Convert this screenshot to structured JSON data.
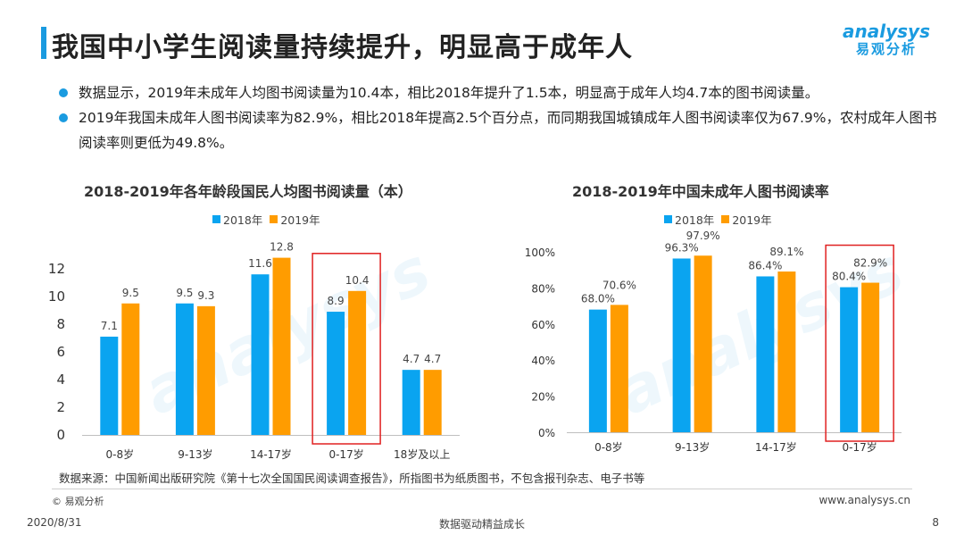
{
  "header": {
    "title": "我国中小学生阅读量持续提升，明显高于成年人",
    "logo_en": "analysys",
    "logo_cn": "易观分析"
  },
  "bullets": [
    "数据显示，2019年未成年人均图书阅读量为10.4本，相比2018年提升了1.5本，明显高于成年人均4.7本的图书阅读量。",
    "2019年我国未成年人图书阅读率为82.9%，相比2018年提高2.5个百分点，而同期我国城镇成年人图书阅读率仅为67.9%，农村成年人图书阅读率则更低为49.8%。"
  ],
  "colors": {
    "series_2018": "#0aa4f0",
    "series_2019": "#ff9c00",
    "highlight": "#e02020",
    "accent": "#1a9be0"
  },
  "chart_data": [
    {
      "type": "bar",
      "title": "2018-2019年各年龄段国民人均图书阅读量（本）",
      "categories": [
        "0-8岁",
        "9-13岁",
        "14-17岁",
        "0-17岁",
        "18岁及以上"
      ],
      "series": [
        {
          "name": "2018年",
          "values": [
            7.1,
            9.5,
            11.6,
            8.9,
            4.7
          ]
        },
        {
          "name": "2019年",
          "values": [
            9.5,
            9.3,
            12.8,
            10.4,
            4.7
          ]
        }
      ],
      "value_labels": {
        "2018年": [
          "7.1",
          "9.5",
          "11.6",
          "8.9",
          "4.7"
        ],
        "2019年": [
          "9.5",
          "9.3",
          "12.8",
          "10.4",
          "4.7"
        ]
      },
      "yticks": [
        "0",
        "2",
        "4",
        "6",
        "8",
        "10",
        "12"
      ],
      "ylim": [
        0,
        14
      ],
      "highlight_category": "0-17岁",
      "legend": "top-center",
      "grid": false
    },
    {
      "type": "bar",
      "title": "2018-2019年中国未成年人图书阅读率",
      "categories": [
        "0-8岁",
        "9-13岁",
        "14-17岁",
        "0-17岁"
      ],
      "series": [
        {
          "name": "2018年",
          "values": [
            68.0,
            96.3,
            86.4,
            80.4
          ]
        },
        {
          "name": "2019年",
          "values": [
            70.6,
            97.9,
            89.1,
            82.9
          ]
        }
      ],
      "value_labels": {
        "2018年": [
          "68.0%",
          "96.3%",
          "86.4%",
          "80.4%"
        ],
        "2019年": [
          "70.6%",
          "97.9%",
          "89.1%",
          "82.9%"
        ]
      },
      "yticks": [
        "0%",
        "20%",
        "40%",
        "60%",
        "80%",
        "100%"
      ],
      "ylim": [
        0,
        100
      ],
      "highlight_category": "0-17岁",
      "legend": "top-center",
      "grid": false
    }
  ],
  "footer": {
    "source": "数据来源：中国新闻出版研究院《第十七次全国国民阅读调查报告》，所指图书为纸质图书，不包含报刊杂志、电子书等",
    "copyright": "© 易观分析",
    "website": "www.analysys.cn",
    "date": "2020/8/31",
    "slogan": "数据驱动精益成长",
    "page": "8"
  }
}
